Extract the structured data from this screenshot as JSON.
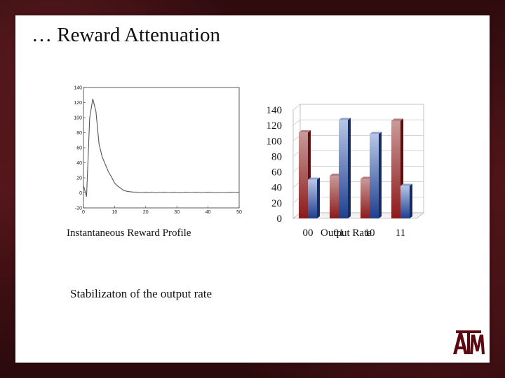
{
  "slide": {
    "title": "… Reward Attenuation",
    "body_text": "Stabilizaton of the output rate",
    "logo_text": "ATM"
  },
  "colors": {
    "frame": "#521519",
    "red_bar": "#8b1a1a",
    "blue_bar": "#1e3f8f",
    "line": "#555555"
  },
  "chart_data": [
    {
      "type": "line",
      "caption": "Instantaneous Reward Profile",
      "xlim": [
        0,
        50
      ],
      "ylim": [
        -20,
        140
      ],
      "x_ticks": [
        0,
        10,
        20,
        30,
        40,
        50
      ],
      "y_ticks": [
        -20,
        0,
        20,
        40,
        60,
        80,
        100,
        120,
        140
      ],
      "grid": false,
      "x": [
        0,
        1,
        2,
        3,
        4,
        5,
        6,
        7,
        8,
        9,
        10,
        11,
        12,
        13,
        14,
        15,
        16,
        17,
        18,
        19,
        20,
        21,
        22,
        23,
        24,
        25,
        26,
        27,
        28,
        29,
        30,
        31,
        32,
        33,
        34,
        35,
        36,
        37,
        38,
        39,
        40,
        41,
        42,
        43,
        44,
        45,
        46,
        47,
        48,
        49,
        50
      ],
      "y": [
        10,
        -5,
        100,
        125,
        108,
        65,
        48,
        38,
        28,
        21,
        13,
        9,
        6,
        3,
        2,
        1.5,
        1,
        1,
        0.5,
        0.5,
        1,
        0.5,
        1,
        0,
        0.5,
        0.5,
        1,
        0.5,
        0.5,
        1,
        0.5,
        0,
        0.5,
        1,
        0.5,
        0.5,
        1,
        0.5,
        0.5,
        0.5,
        1,
        0.5,
        0.5,
        0,
        0.5,
        0.5,
        0.5,
        1,
        0.5,
        0.5,
        1
      ]
    },
    {
      "type": "bar",
      "caption": "Output Rate",
      "categories": [
        "00",
        "01",
        "10",
        "11"
      ],
      "ylim": [
        0,
        140
      ],
      "y_ticks": [
        0,
        20,
        40,
        60,
        80,
        100,
        120,
        140
      ],
      "grid": true,
      "series": [
        {
          "values": [
            111,
            55,
            51,
            126
          ]
        },
        {
          "values": [
            50,
            127,
            109,
            42
          ]
        }
      ]
    }
  ]
}
